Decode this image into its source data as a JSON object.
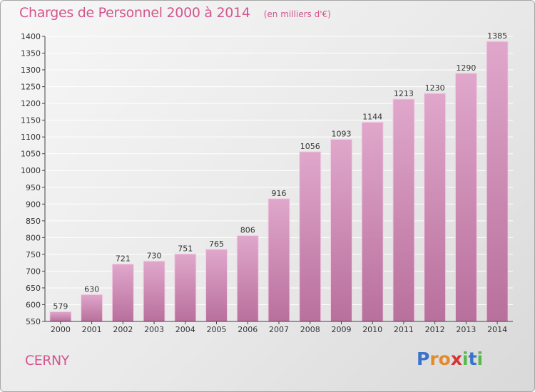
{
  "header": {
    "title": "Charges de Personnel 2000 à 2014",
    "subtitle": "(en milliers d'€)"
  },
  "footer": {
    "commune": "CERNY"
  },
  "logo": {
    "letters": [
      "P",
      "r",
      "o",
      "x",
      "i",
      "t",
      "i"
    ],
    "colors": [
      "#3a73c9",
      "#e58a2a",
      "#e58a2a",
      "#d63333",
      "#57b94a",
      "#3a73c9",
      "#57b94a"
    ]
  },
  "colors": {
    "bar_top": "#e0a7cb",
    "bar_bottom": "#b8709c",
    "bar_edge": "#f2cfe4",
    "axis": "#444444",
    "grid": "#ffffff",
    "text": "#333333"
  },
  "chart_data": {
    "type": "bar",
    "title": "Charges de Personnel 2000 à 2014",
    "subtitle": "(en milliers d'€)",
    "xlabel": "",
    "ylabel": "",
    "categories": [
      "2000",
      "2001",
      "2002",
      "2003",
      "2004",
      "2005",
      "2006",
      "2007",
      "2008",
      "2009",
      "2010",
      "2011",
      "2012",
      "2013",
      "2014"
    ],
    "values": [
      579,
      630,
      721,
      730,
      751,
      765,
      806,
      916,
      1056,
      1093,
      1144,
      1213,
      1230,
      1290,
      1385
    ],
    "ylim": [
      550,
      1400
    ],
    "yticks": [
      550,
      600,
      650,
      700,
      750,
      800,
      850,
      900,
      950,
      1000,
      1050,
      1100,
      1150,
      1200,
      1250,
      1300,
      1350,
      1400
    ],
    "grid": true,
    "legend": "none"
  }
}
